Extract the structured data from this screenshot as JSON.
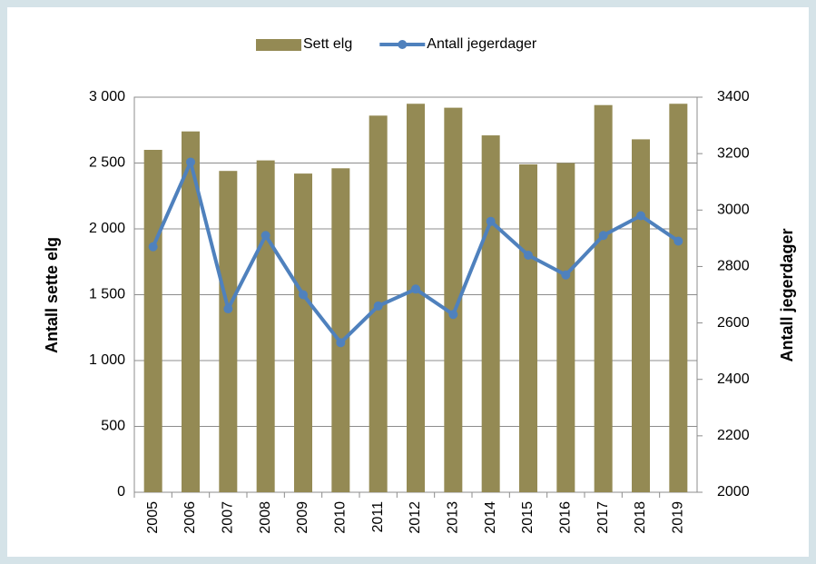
{
  "chart_data": {
    "type": "bar",
    "categories": [
      "2005",
      "2006",
      "2007",
      "2008",
      "2009",
      "2010",
      "2011",
      "2012",
      "2013",
      "2014",
      "2015",
      "2016",
      "2017",
      "2018",
      "2019"
    ],
    "y_label": "Antall  sette elg",
    "y2_label": "Antall jegerdager",
    "series": [
      {
        "name": "Sett elg",
        "type": "bar",
        "color": "#948a54",
        "values": [
          2600,
          2740,
          2440,
          2520,
          2420,
          2460,
          2860,
          2950,
          2920,
          2710,
          2490,
          2500,
          2940,
          2680,
          2950
        ]
      },
      {
        "name": "Antall jegerdager",
        "type": "line",
        "axis": "y2",
        "color": "#4f81bd",
        "values": [
          2870,
          3170,
          2650,
          2910,
          2700,
          2530,
          2660,
          2720,
          2630,
          2960,
          2840,
          2770,
          2910,
          2980,
          2890
        ]
      }
    ],
    "ylim": [
      0,
      3000
    ],
    "yticks": [
      0,
      500,
      {
        "value": 1000,
        "label": "1 000"
      },
      {
        "value": 1500,
        "label": "1 500"
      },
      {
        "value": 2000,
        "label": "2 000"
      },
      {
        "value": 2500,
        "label": "2 500"
      },
      {
        "value": 3000,
        "label": "3 000"
      }
    ],
    "y2lim": [
      2000,
      3400
    ],
    "y2ticks": [
      2000,
      2200,
      2400,
      2600,
      2800,
      3000,
      3200,
      3400
    ],
    "grid": true,
    "legend": "top"
  }
}
